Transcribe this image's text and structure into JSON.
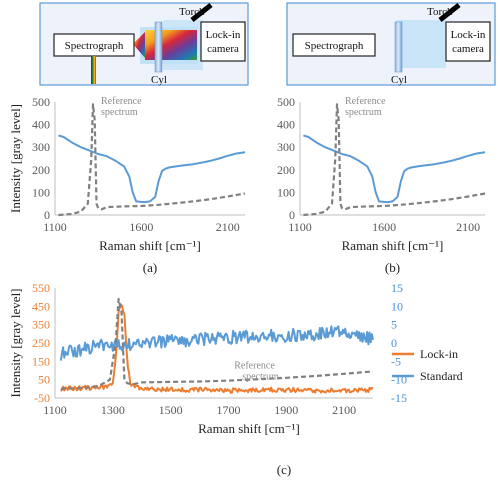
{
  "diagrams": {
    "a": {
      "torch": "Torch",
      "camera_line1": "Lock-in",
      "camera_line2": "camera",
      "spectrograph": "Spectrograph",
      "cyl": "Cyl"
    },
    "b": {
      "torch": "Torch",
      "camera_line1": "Lock-in",
      "camera_line2": "camera",
      "spectrograph": "Spectrograph",
      "cyl": "Cyl"
    }
  },
  "colors": {
    "standard": "#5b9bd5",
    "lockin": "#ed7d31",
    "reference": "#808080",
    "axis_right": "#4a90d9"
  },
  "chart_data": [
    {
      "id": "a",
      "type": "line",
      "caption": "(a)",
      "xlabel": "Raman shift [cm⁻¹]",
      "ylabel": "Intensity [gray level]",
      "xlim": [
        1100,
        2200
      ],
      "ylim": [
        0,
        500
      ],
      "xticks": [
        1100,
        1600,
        2100
      ],
      "yticks": [
        0,
        100,
        200,
        300,
        400,
        500
      ],
      "annotation": [
        "Reference",
        "spectrum"
      ],
      "series": [
        {
          "role": "standard",
          "style": "solid",
          "x": [
            1120,
            1150,
            1200,
            1250,
            1300,
            1350,
            1400,
            1450,
            1500,
            1530,
            1550,
            1570,
            1600,
            1620,
            1650,
            1680,
            1700,
            1720,
            1740,
            1760,
            1800,
            1850,
            1900,
            1950,
            2000,
            2050,
            2100,
            2150,
            2200
          ],
          "y": [
            352,
            345,
            320,
            300,
            285,
            270,
            260,
            240,
            215,
            170,
            100,
            60,
            58,
            57,
            60,
            80,
            150,
            195,
            205,
            210,
            215,
            220,
            225,
            232,
            240,
            250,
            262,
            272,
            278
          ]
        },
        {
          "role": "reference",
          "style": "dashed",
          "x": [
            1120,
            1200,
            1250,
            1290,
            1310,
            1320,
            1330,
            1340,
            1350,
            1370,
            1400,
            1500,
            1600,
            1700,
            1800,
            1900,
            2000,
            2100,
            2200
          ],
          "y": [
            0,
            5,
            15,
            50,
            250,
            490,
            420,
            50,
            30,
            25,
            35,
            38,
            40,
            45,
            52,
            60,
            70,
            82,
            95
          ]
        }
      ]
    },
    {
      "id": "b",
      "type": "line",
      "caption": "(b)",
      "xlabel": "Raman shift [cm⁻¹]",
      "ylabel": "",
      "xlim": [
        1100,
        2200
      ],
      "ylim": [
        0,
        500
      ],
      "xticks": [
        1100,
        1600,
        2100
      ],
      "yticks": [
        0,
        100,
        200,
        300,
        400,
        500
      ],
      "annotation": [
        "Reference",
        "spectrum"
      ],
      "series": [
        {
          "role": "standard",
          "style": "solid",
          "x": [
            1120,
            1150,
            1200,
            1250,
            1300,
            1350,
            1400,
            1450,
            1500,
            1530,
            1550,
            1570,
            1600,
            1620,
            1650,
            1680,
            1700,
            1720,
            1740,
            1760,
            1800,
            1850,
            1900,
            1950,
            2000,
            2050,
            2100,
            2150,
            2200
          ],
          "y": [
            352,
            345,
            320,
            300,
            285,
            270,
            260,
            240,
            215,
            170,
            100,
            60,
            58,
            57,
            60,
            80,
            150,
            195,
            205,
            210,
            215,
            220,
            225,
            232,
            240,
            250,
            262,
            272,
            278
          ]
        },
        {
          "role": "reference",
          "style": "dashed",
          "x": [
            1120,
            1200,
            1250,
            1290,
            1310,
            1320,
            1330,
            1340,
            1350,
            1370,
            1400,
            1500,
            1600,
            1700,
            1800,
            1900,
            2000,
            2100,
            2200
          ],
          "y": [
            0,
            5,
            15,
            50,
            250,
            490,
            420,
            50,
            30,
            25,
            35,
            38,
            40,
            45,
            52,
            60,
            70,
            82,
            95
          ]
        }
      ]
    },
    {
      "id": "c",
      "type": "line",
      "caption": "(c)",
      "xlabel": "Raman shift [cm⁻¹]",
      "ylabel": "Intensity [gray level]",
      "xlim": [
        1100,
        2200
      ],
      "xticks": [
        1100,
        1300,
        1500,
        1700,
        1900,
        2100
      ],
      "ylim_left": [
        -50,
        550
      ],
      "yticks_left": [
        -50,
        50,
        150,
        250,
        350,
        450,
        550
      ],
      "ylim_right": [
        -15,
        15
      ],
      "yticks_right": [
        -15,
        -10,
        -5,
        0,
        5,
        10,
        15
      ],
      "annotation": [
        "Reference",
        "spectrum"
      ],
      "legend": [
        "Lock-in",
        "Standard"
      ],
      "legend_position": "right",
      "series": [
        {
          "role": "lockin",
          "style": "solid",
          "axis": "left",
          "noise": 12,
          "x": [
            1120,
            1200,
            1280,
            1300,
            1310,
            1320,
            1330,
            1340,
            1350,
            1360,
            1380,
            1400,
            1500,
            1600,
            1700,
            1800,
            1900,
            2000,
            2100,
            2200
          ],
          "y": [
            0,
            5,
            10,
            30,
            150,
            420,
            480,
            400,
            150,
            30,
            10,
            0,
            -5,
            -5,
            -10,
            -5,
            -5,
            -10,
            -10,
            -5
          ]
        },
        {
          "role": "standard",
          "style": "solid",
          "axis": "right",
          "noise": 1.8,
          "x": [
            1120,
            1200,
            1300,
            1400,
            1500,
            1600,
            1700,
            1800,
            1900,
            2000,
            2100,
            2150,
            2200
          ],
          "y": [
            -3,
            -1.5,
            -0.5,
            0,
            0.5,
            1,
            1.5,
            2,
            2,
            2.5,
            3,
            2,
            1
          ]
        },
        {
          "role": "reference",
          "style": "dashed",
          "axis": "left",
          "x": [
            1120,
            1200,
            1250,
            1290,
            1310,
            1320,
            1330,
            1340,
            1350,
            1370,
            1400,
            1500,
            1600,
            1700,
            1800,
            1900,
            2000,
            2100,
            2200
          ],
          "y": [
            0,
            5,
            15,
            50,
            250,
            490,
            420,
            50,
            30,
            25,
            35,
            38,
            40,
            45,
            52,
            60,
            70,
            82,
            95
          ]
        }
      ]
    }
  ]
}
